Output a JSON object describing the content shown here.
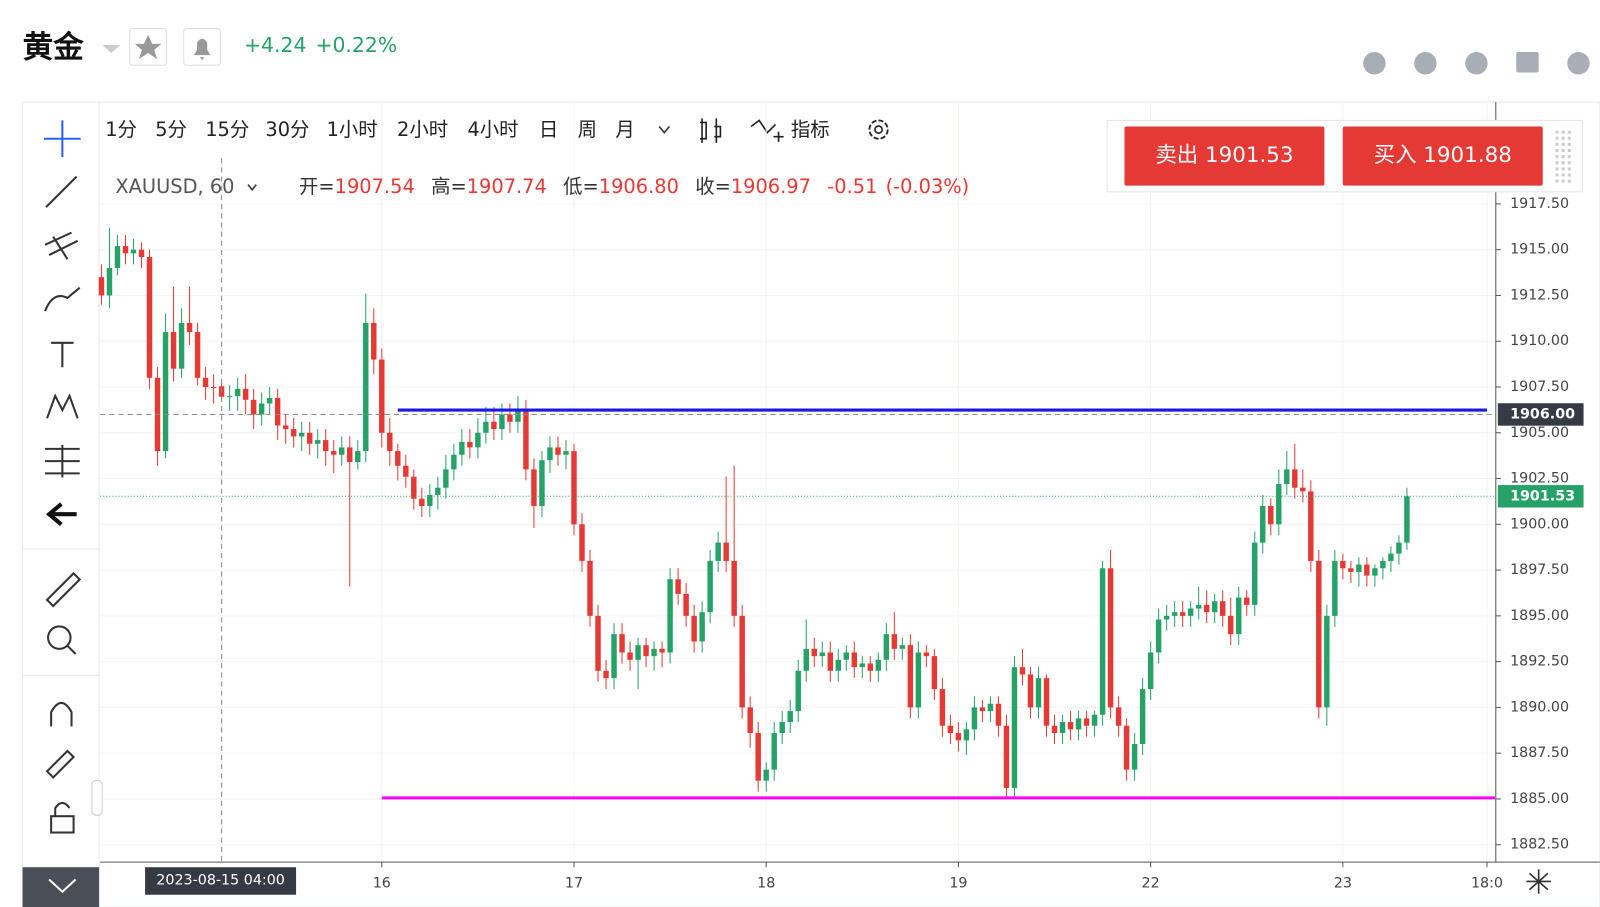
{
  "header": {
    "symbol": "黄金",
    "change": "+4.24",
    "change_pct": "+0.22%"
  },
  "toolbar": {
    "intervals": [
      "1分",
      "5分",
      "15分",
      "30分",
      "1小时",
      "2小时",
      "4小时",
      "日",
      "周",
      "月"
    ],
    "active": 4,
    "indicators": "指标"
  },
  "trade": {
    "sell": "卖出 1901.53",
    "buy": "买入 1901.88"
  },
  "legend": {
    "symbol": "XAUUSD, 60",
    "ohlc": [
      {
        "label": "开=",
        "value": "1907.54"
      },
      {
        "label": "高=",
        "value": "1907.74"
      },
      {
        "label": "低=",
        "value": "1906.80"
      },
      {
        "label": "收=",
        "value": "1906.97"
      }
    ],
    "change": "-0.51",
    "change_pct": "(-0.03%)"
  },
  "chart_data": {
    "type": "candlestick",
    "up_color": "#26a269",
    "down_color": "#e53935",
    "grid": true,
    "open": [
      1913.5,
      1912.5,
      1914.0,
      1915.2,
      1914.8,
      1915.0,
      1914.6,
      1908.0,
      1904.0,
      1910.5,
      1908.5,
      1911.0,
      1910.5,
      1908.0,
      1907.5,
      1907.54,
      1906.97,
      1907.0,
      1907.4,
      1906.8,
      1906.0,
      1906.6,
      1906.9,
      1905.4,
      1905.2,
      1904.8,
      1905.0,
      1904.4,
      1904.6,
      1904.0,
      1903.8,
      1904.2,
      1903.4,
      1904.0,
      1911.0,
      1909.0,
      1905.0,
      1904.0,
      1903.2,
      1902.6,
      1901.4,
      1901.0,
      1901.6,
      1902.0,
      1903.0,
      1903.8,
      1904.5,
      1904.2,
      1905.0,
      1905.6,
      1905.2,
      1906.0,
      1905.6,
      1906.2,
      1903.0,
      1901.0,
      1903.5,
      1904.2,
      1903.8,
      1904.0,
      1900.0,
      1898.0,
      1895.0,
      1892.0,
      1891.6,
      1894.0,
      1893.0,
      1892.6,
      1893.4,
      1892.8,
      1893.2,
      1893.0,
      1897.0,
      1896.2,
      1895.0,
      1893.6,
      1895.2,
      1898.0,
      1899.0,
      1898.0,
      1895.0,
      1890.0,
      1888.6,
      1886.0,
      1886.6,
      1888.6,
      1889.2,
      1889.8,
      1892.0,
      1893.2,
      1892.8,
      1893.0,
      1892.0,
      1892.6,
      1893.0,
      1892.2,
      1892.4,
      1892.0,
      1892.6,
      1894.0,
      1893.2,
      1893.4,
      1890.0,
      1893.0,
      1892.8,
      1891.0,
      1889.0,
      1888.6,
      1888.2,
      1888.8,
      1890.0,
      1889.8,
      1890.2,
      1889.0,
      1885.6,
      1892.2,
      1891.8,
      1890.0,
      1891.6,
      1889.0,
      1888.6,
      1889.2,
      1888.8,
      1889.4,
      1889.0,
      1889.6,
      1897.6,
      1890.0,
      1889.0,
      1886.6,
      1888.0,
      1891.0,
      1893.0,
      1894.8,
      1895.0,
      1895.2,
      1895.0,
      1895.4,
      1895.6,
      1895.2,
      1895.8,
      1895.0,
      1894.0,
      1896.0,
      1895.6,
      1899.0,
      1901.0,
      1900.0,
      1902.2,
      1903.0,
      1902.0,
      1901.8,
      1898.0,
      1890.0,
      1895.0,
      1898.0,
      1897.6,
      1897.4,
      1897.8,
      1897.2,
      1897.6,
      1898.0,
      1898.4,
      1899.0
    ],
    "high": [
      1914.2,
      1916.2,
      1915.8,
      1915.8,
      1915.6,
      1915.4,
      1915.0,
      1908.6,
      1911.5,
      1913.0,
      1911.8,
      1913.0,
      1911.0,
      1908.6,
      1908.2,
      1907.74,
      1907.6,
      1908.0,
      1908.2,
      1907.4,
      1907.2,
      1907.5,
      1907.4,
      1906.0,
      1905.8,
      1905.6,
      1905.6,
      1905.2,
      1905.2,
      1904.6,
      1904.8,
      1904.8,
      1904.6,
      1912.6,
      1911.8,
      1909.6,
      1905.8,
      1904.4,
      1903.8,
      1903.0,
      1902.0,
      1902.2,
      1902.6,
      1903.8,
      1904.4,
      1905.2,
      1905.2,
      1905.8,
      1906.4,
      1906.4,
      1906.6,
      1906.6,
      1907.0,
      1906.8,
      1903.6,
      1904.0,
      1904.8,
      1904.8,
      1904.6,
      1904.4,
      1900.6,
      1898.6,
      1895.6,
      1892.6,
      1894.6,
      1894.6,
      1893.6,
      1893.8,
      1893.8,
      1893.6,
      1893.6,
      1897.6,
      1897.6,
      1896.8,
      1895.6,
      1895.8,
      1898.6,
      1899.6,
      1902.6,
      1903.2,
      1895.6,
      1890.6,
      1889.2,
      1887.0,
      1889.2,
      1889.8,
      1890.4,
      1892.6,
      1894.8,
      1893.8,
      1893.6,
      1893.6,
      1893.2,
      1893.4,
      1893.6,
      1892.8,
      1892.8,
      1893.0,
      1894.6,
      1895.2,
      1893.8,
      1894.0,
      1893.6,
      1893.4,
      1893.2,
      1891.6,
      1889.6,
      1889.2,
      1889.2,
      1890.6,
      1890.4,
      1890.6,
      1890.6,
      1889.6,
      1892.8,
      1893.2,
      1892.2,
      1892.2,
      1891.8,
      1889.6,
      1889.6,
      1889.8,
      1889.8,
      1889.8,
      1889.8,
      1898.0,
      1898.6,
      1890.6,
      1889.4,
      1888.6,
      1891.6,
      1893.6,
      1895.4,
      1895.6,
      1895.8,
      1895.8,
      1895.8,
      1896.6,
      1896.4,
      1896.2,
      1896.4,
      1896.0,
      1896.6,
      1896.4,
      1899.6,
      1901.6,
      1901.4,
      1903.0,
      1904.0,
      1904.4,
      1903.0,
      1902.4,
      1898.6,
      1895.6,
      1898.6,
      1898.4,
      1898.0,
      1898.2,
      1898.2,
      1897.8,
      1898.2,
      1898.8,
      1899.4,
      1902.0
    ],
    "low": [
      1912.0,
      1911.8,
      1913.6,
      1914.2,
      1914.2,
      1914.0,
      1907.4,
      1903.2,
      1903.6,
      1907.8,
      1908.0,
      1909.8,
      1907.6,
      1906.8,
      1906.6,
      1906.8,
      1906.2,
      1906.2,
      1906.0,
      1905.2,
      1905.4,
      1906.0,
      1904.6,
      1904.4,
      1904.2,
      1904.0,
      1903.8,
      1903.6,
      1903.2,
      1902.8,
      1903.2,
      1896.6,
      1903.0,
      1903.4,
      1908.2,
      1904.2,
      1903.2,
      1902.4,
      1902.0,
      1900.8,
      1900.4,
      1900.4,
      1900.8,
      1901.4,
      1902.4,
      1903.2,
      1903.6,
      1903.6,
      1904.4,
      1904.6,
      1904.6,
      1905.0,
      1905.0,
      1902.4,
      1899.8,
      1900.4,
      1902.8,
      1903.2,
      1903.0,
      1899.4,
      1897.4,
      1894.4,
      1891.4,
      1891.0,
      1891.0,
      1892.4,
      1892.0,
      1891.0,
      1892.2,
      1892.0,
      1892.2,
      1892.4,
      1895.6,
      1894.4,
      1893.0,
      1893.0,
      1894.6,
      1897.4,
      1897.4,
      1894.4,
      1889.4,
      1887.8,
      1885.4,
      1885.4,
      1886.0,
      1888.0,
      1888.6,
      1889.2,
      1891.4,
      1892.2,
      1892.2,
      1891.4,
      1891.4,
      1892.0,
      1891.6,
      1891.6,
      1891.4,
      1891.4,
      1892.0,
      1892.6,
      1892.6,
      1889.4,
      1889.4,
      1892.2,
      1890.4,
      1888.4,
      1888.0,
      1887.6,
      1887.4,
      1888.2,
      1889.2,
      1889.2,
      1888.4,
      1885.0,
      1885.0,
      1891.2,
      1889.4,
      1889.4,
      1888.4,
      1888.0,
      1888.0,
      1888.2,
      1888.2,
      1888.4,
      1888.4,
      1889.0,
      1889.4,
      1888.4,
      1886.0,
      1886.0,
      1887.4,
      1890.4,
      1892.4,
      1894.2,
      1894.4,
      1894.4,
      1894.4,
      1894.8,
      1894.6,
      1894.6,
      1894.4,
      1893.4,
      1893.4,
      1895.0,
      1895.0,
      1898.4,
      1899.4,
      1899.4,
      1901.6,
      1901.4,
      1901.2,
      1897.4,
      1889.4,
      1889.0,
      1894.4,
      1897.0,
      1896.8,
      1896.6,
      1896.6,
      1896.6,
      1897.0,
      1897.4,
      1897.8,
      1898.6
    ],
    "close": [
      1912.5,
      1914.0,
      1915.2,
      1914.8,
      1915.0,
      1914.6,
      1908.0,
      1904.0,
      1910.5,
      1908.5,
      1911.0,
      1910.5,
      1908.0,
      1907.5,
      1907.48,
      1906.97,
      1907.0,
      1907.4,
      1906.8,
      1906.0,
      1906.6,
      1906.9,
      1905.4,
      1905.2,
      1904.8,
      1905.0,
      1904.4,
      1904.6,
      1904.0,
      1903.8,
      1904.2,
      1903.4,
      1904.0,
      1911.0,
      1909.0,
      1905.0,
      1904.0,
      1903.2,
      1902.6,
      1901.4,
      1901.0,
      1901.6,
      1902.0,
      1903.0,
      1903.8,
      1904.5,
      1904.2,
      1905.0,
      1905.6,
      1905.2,
      1906.0,
      1905.6,
      1906.2,
      1903.0,
      1901.0,
      1903.5,
      1904.2,
      1903.8,
      1904.0,
      1900.0,
      1898.0,
      1895.0,
      1892.0,
      1891.6,
      1894.0,
      1893.0,
      1892.6,
      1893.4,
      1892.8,
      1893.2,
      1893.0,
      1897.0,
      1896.2,
      1895.0,
      1893.6,
      1895.2,
      1898.0,
      1899.0,
      1898.0,
      1895.0,
      1890.0,
      1888.6,
      1886.0,
      1886.6,
      1888.6,
      1889.2,
      1889.8,
      1892.0,
      1893.2,
      1892.8,
      1893.0,
      1892.0,
      1892.6,
      1893.0,
      1892.2,
      1892.4,
      1892.0,
      1892.6,
      1894.0,
      1893.2,
      1893.4,
      1890.0,
      1893.0,
      1892.8,
      1891.0,
      1889.0,
      1888.6,
      1888.2,
      1888.8,
      1890.0,
      1889.8,
      1890.2,
      1889.0,
      1885.6,
      1892.2,
      1891.8,
      1890.0,
      1891.6,
      1889.0,
      1888.6,
      1889.2,
      1888.8,
      1889.4,
      1889.0,
      1889.6,
      1897.6,
      1890.0,
      1889.0,
      1886.6,
      1888.0,
      1891.0,
      1893.0,
      1894.8,
      1895.0,
      1895.2,
      1895.0,
      1895.4,
      1895.6,
      1895.2,
      1895.8,
      1895.0,
      1894.0,
      1896.0,
      1895.6,
      1899.0,
      1901.0,
      1900.0,
      1902.2,
      1903.0,
      1902.0,
      1901.8,
      1898.0,
      1890.0,
      1895.0,
      1898.0,
      1897.6,
      1897.4,
      1897.8,
      1897.2,
      1897.6,
      1898.0,
      1898.4,
      1899.0,
      1901.53
    ],
    "xlim": [
      -0.17,
      174.1
    ],
    "ylim": [
      1881.55,
      1920.0
    ],
    "xticks": [
      {
        "value": 35,
        "label": "16"
      },
      {
        "value": 59,
        "label": "17"
      },
      {
        "value": 83,
        "label": "18"
      },
      {
        "value": 107,
        "label": "19"
      },
      {
        "value": 131,
        "label": "22"
      },
      {
        "value": 155,
        "label": "23"
      },
      {
        "value": 173,
        "label": "18:0"
      }
    ],
    "yticks": [
      {
        "value": 1882.5,
        "label": "1882.50"
      },
      {
        "value": 1885,
        "label": "1885.00"
      },
      {
        "value": 1887.5,
        "label": "1887.50"
      },
      {
        "value": 1890,
        "label": "1890.00"
      },
      {
        "value": 1892.5,
        "label": "1892.50"
      },
      {
        "value": 1895,
        "label": "1895.00"
      },
      {
        "value": 1897.5,
        "label": "1897.50"
      },
      {
        "value": 1900,
        "label": "1900.00"
      },
      {
        "value": 1902.5,
        "label": "1902.50"
      },
      {
        "value": 1905,
        "label": "1905.00"
      },
      {
        "value": 1907.5,
        "label": "1907.50"
      },
      {
        "value": 1910,
        "label": "1910.00"
      },
      {
        "value": 1912.5,
        "label": "1912.50"
      },
      {
        "value": 1915,
        "label": "1915.00"
      },
      {
        "value": 1917.5,
        "label": "1917.50"
      }
    ],
    "crosshair": {
      "x": {
        "value": 15,
        "label": "2023-08-15 04:00"
      },
      "y": {
        "value": 1906.0,
        "label": "1906.00"
      }
    },
    "last_price": {
      "value": 1901.53,
      "label": "1901.53",
      "color": "#26a269"
    },
    "lines": [
      {
        "value": 1906.24,
        "x": [
          37,
          173
        ],
        "color": "#1a1ae6"
      },
      {
        "value": 1885.06,
        "x": [
          35,
          174
        ],
        "color": "#ff00ff"
      }
    ]
  }
}
